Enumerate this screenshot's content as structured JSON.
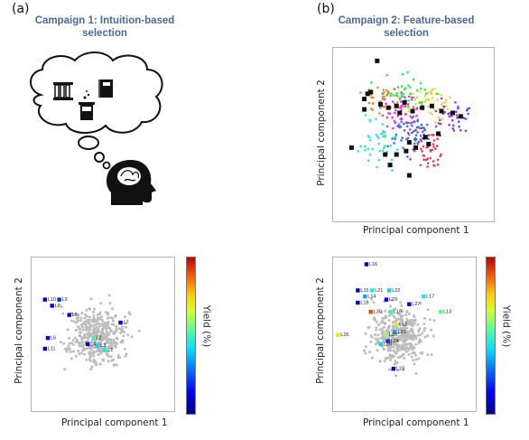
{
  "panel_a": {
    "letter": "(a)",
    "title_line1": "Campaign 1: Intuition-based",
    "title_line2": "selection"
  },
  "panel_b": {
    "letter": "(b)",
    "title_line1": "Campaign 2: Feature-based",
    "title_line2": "selection"
  },
  "top_scatter": {
    "xlabel": "Principal component 1",
    "ylabel": "Principal component 2"
  },
  "bottom_left": {
    "xlabel": "Principal component 1",
    "ylabel": "Principal component 2",
    "colorbar_label": "Yield (%)"
  },
  "bottom_right": {
    "xlabel": "Principal component 1",
    "ylabel": "Principal component 2",
    "colorbar_label": "Yield (%)"
  },
  "colors": {
    "title": "#4d6a96",
    "grey_points": "#bdbdbd",
    "selected_marker": "#111111"
  },
  "chart_data": [
    {
      "type": "scatter",
      "id": "bottom_left",
      "xlabel": "Principal component 1",
      "ylabel": "Principal component 2",
      "colorbar": "Yield (%)",
      "labeled_points": [
        {
          "label": "L10",
          "x": 0.1,
          "y": 0.72,
          "yield": 0.05
        },
        {
          "label": "L9",
          "x": 0.2,
          "y": 0.72,
          "yield": 0.2
        },
        {
          "label": "L8",
          "x": 0.15,
          "y": 0.68,
          "yield": 0.08
        },
        {
          "label": "L5",
          "x": 0.27,
          "y": 0.62,
          "yield": 0.1
        },
        {
          "label": "L6",
          "x": 0.12,
          "y": 0.47,
          "yield": 0.12
        },
        {
          "label": "L11",
          "x": 0.1,
          "y": 0.4,
          "yield": 0.05
        },
        {
          "label": "L7",
          "x": 0.63,
          "y": 0.57,
          "yield": 0.1
        },
        {
          "label": "L2",
          "x": 0.44,
          "y": 0.47,
          "yield": 0.5
        },
        {
          "label": "L4",
          "x": 0.4,
          "y": 0.43,
          "yield": 0.1
        },
        {
          "label": "L3",
          "x": 0.47,
          "y": 0.42,
          "yield": 0.4
        },
        {
          "label": "L1",
          "x": 0.52,
          "y": 0.39,
          "yield": 0.45
        }
      ]
    },
    {
      "type": "scatter",
      "id": "bottom_right",
      "xlabel": "Principal component 1",
      "ylabel": "Principal component 2",
      "colorbar": "Yield (%)",
      "labeled_points": [
        {
          "label": "L16",
          "x": 0.24,
          "y": 0.95,
          "yield": 0.05
        },
        {
          "label": "L15",
          "x": 0.18,
          "y": 0.78,
          "yield": 0.05
        },
        {
          "label": "L14",
          "x": 0.23,
          "y": 0.74,
          "yield": 0.35
        },
        {
          "label": "L21",
          "x": 0.28,
          "y": 0.78,
          "yield": 0.45
        },
        {
          "label": "L22",
          "x": 0.4,
          "y": 0.78,
          "yield": 0.4
        },
        {
          "label": "L18",
          "x": 0.18,
          "y": 0.7,
          "yield": 0.05
        },
        {
          "label": "L29",
          "x": 0.38,
          "y": 0.72,
          "yield": 0.1
        },
        {
          "label": "L17",
          "x": 0.64,
          "y": 0.74,
          "yield": 0.45
        },
        {
          "label": "L27",
          "x": 0.54,
          "y": 0.69,
          "yield": 0.1
        },
        {
          "label": "L30",
          "x": 0.27,
          "y": 0.64,
          "yield": 0.9
        },
        {
          "label": "L19",
          "x": 0.41,
          "y": 0.64,
          "yield": 0.5
        },
        {
          "label": "L13",
          "x": 0.76,
          "y": 0.64,
          "yield": 0.55
        },
        {
          "label": "L12",
          "x": 0.45,
          "y": 0.56,
          "yield": 0.7
        },
        {
          "label": "L20",
          "x": 0.44,
          "y": 0.51,
          "yield": 0.35
        },
        {
          "label": "L26",
          "x": 0.04,
          "y": 0.49,
          "yield": 0.7
        },
        {
          "label": "L25",
          "x": 0.38,
          "y": 0.49,
          "yield": 0.6
        },
        {
          "label": "L24",
          "x": 0.39,
          "y": 0.45,
          "yield": 0.2
        },
        {
          "label": "L28",
          "x": 0.34,
          "y": 0.43,
          "yield": 0.4
        },
        {
          "label": "L23",
          "x": 0.43,
          "y": 0.27,
          "yield": 0.05
        }
      ]
    }
  ]
}
